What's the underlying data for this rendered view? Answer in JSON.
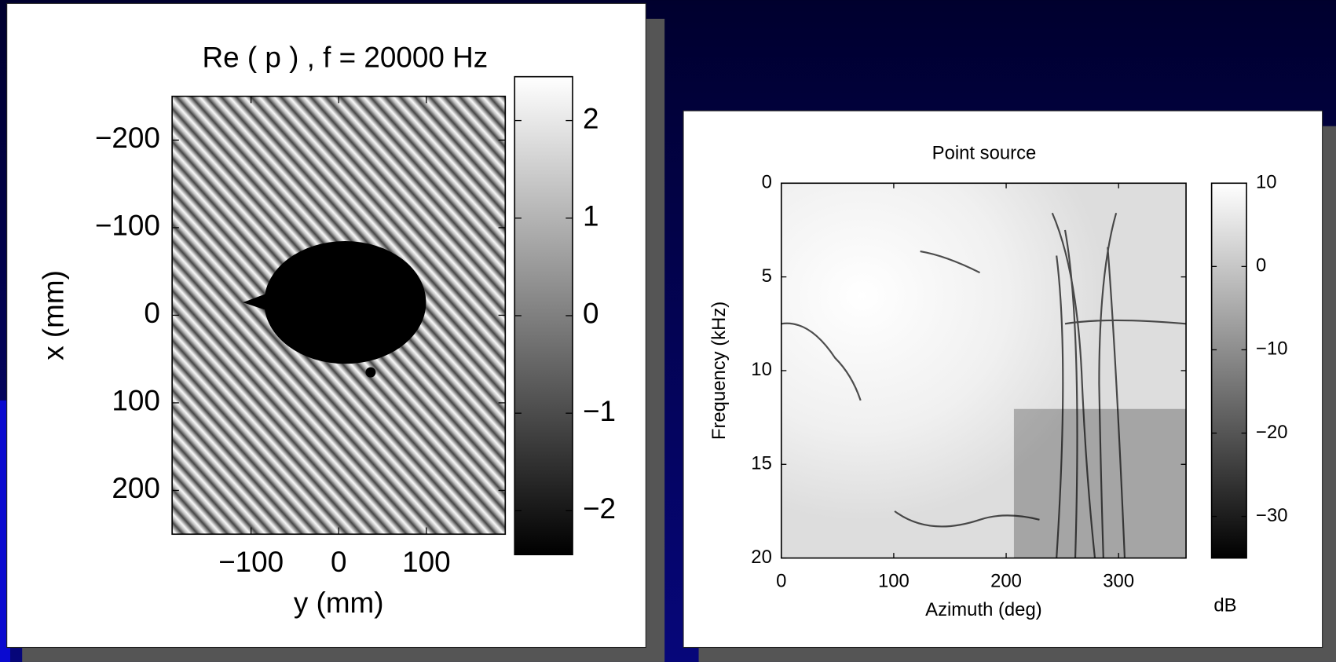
{
  "chart_data": [
    {
      "type": "heatmap",
      "title": "Re ( p ) , f = 20000 Hz",
      "x_label": "y (mm)",
      "y_label": "x (mm)",
      "xlim": [
        -190,
        190
      ],
      "xticks": [
        {
          "value": -100,
          "label": "−100"
        },
        0,
        100
      ],
      "ylim": [
        -250,
        250
      ],
      "y_reversed": true,
      "yticks": [
        {
          "value": -200,
          "label": "−200"
        },
        {
          "value": -100,
          "label": "−100"
        },
        0,
        100,
        200
      ],
      "colormap": "gray",
      "clim": [
        -2.45,
        2.45
      ],
      "colorbar_ticks": [
        {
          "value": -2,
          "label": "−2"
        },
        {
          "value": -1,
          "label": "−1"
        },
        0,
        1,
        2
      ]
    },
    {
      "type": "heatmap",
      "title": "Point source",
      "x_label": "Azimuth (deg)",
      "y_label": "Frequency (kHz)",
      "xlim": [
        0,
        360
      ],
      "xticks": [
        0,
        100,
        200,
        300
      ],
      "ylim": [
        0,
        20
      ],
      "y_reversed": true,
      "yticks": [
        0,
        5,
        10,
        15,
        20
      ],
      "colormap": "gray",
      "clim": [
        -35,
        10
      ],
      "colorbar_ticks": [
        {
          "value": -30,
          "label": "−30"
        },
        {
          "value": -20,
          "label": "−20"
        },
        {
          "value": -10,
          "label": "−10"
        },
        0,
        10
      ],
      "colorbar_label": "dB"
    }
  ]
}
